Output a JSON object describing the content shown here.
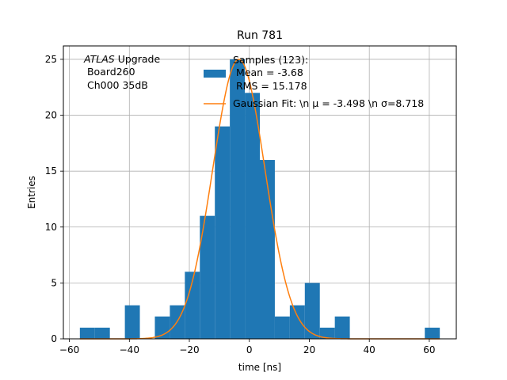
{
  "chart_data": {
    "type": "bar",
    "title": "Run 781",
    "xlabel": "time [ns]",
    "ylabel": "Entries",
    "xlim": [
      -62,
      69
    ],
    "ylim": [
      0,
      26.2
    ],
    "x_ticks": [
      -60,
      -40,
      -20,
      0,
      20,
      40,
      60
    ],
    "x_tick_labels": [
      "−60",
      "−40",
      "−20",
      "0",
      "20",
      "40",
      "60"
    ],
    "y_ticks": [
      0,
      5,
      10,
      15,
      20,
      25
    ],
    "y_tick_labels": [
      "0",
      "5",
      "10",
      "15",
      "20",
      "25"
    ],
    "grid": true,
    "bin_edges": [
      -56.5,
      -51.5,
      -46.5,
      -41.5,
      -36.5,
      -31.5,
      -26.5,
      -21.5,
      -16.5,
      -11.5,
      -6.5,
      -1.5,
      3.5,
      8.5,
      13.5,
      18.5,
      23.5,
      28.5,
      33.5,
      38.5,
      43.5,
      48.5,
      53.5,
      58.5,
      63.5
    ],
    "counts": [
      1,
      1,
      0,
      3,
      0,
      2,
      3,
      6,
      11,
      19,
      25,
      22,
      16,
      2,
      3,
      5,
      1,
      2,
      0,
      0,
      0,
      0,
      0,
      1
    ],
    "fit": {
      "amplitude": 25,
      "mu": -3.498,
      "sigma": 8.718
    },
    "annotation": {
      "italic": "ATLAS",
      "suffix": " Upgrade",
      "line2": " Board260",
      "line3": " Ch000 35dB"
    },
    "legend": {
      "location": "top-right",
      "samples_line1": "Samples (123):",
      "samples_line2": " Mean = -3.68",
      "samples_line3": " RMS = 15.178",
      "fit_label": "Gaussian Fit: \\n μ = -3.498 \\n σ=8.718"
    },
    "colors": {
      "histogram": "#1f77b4",
      "fit": "#ff7f0e"
    }
  }
}
